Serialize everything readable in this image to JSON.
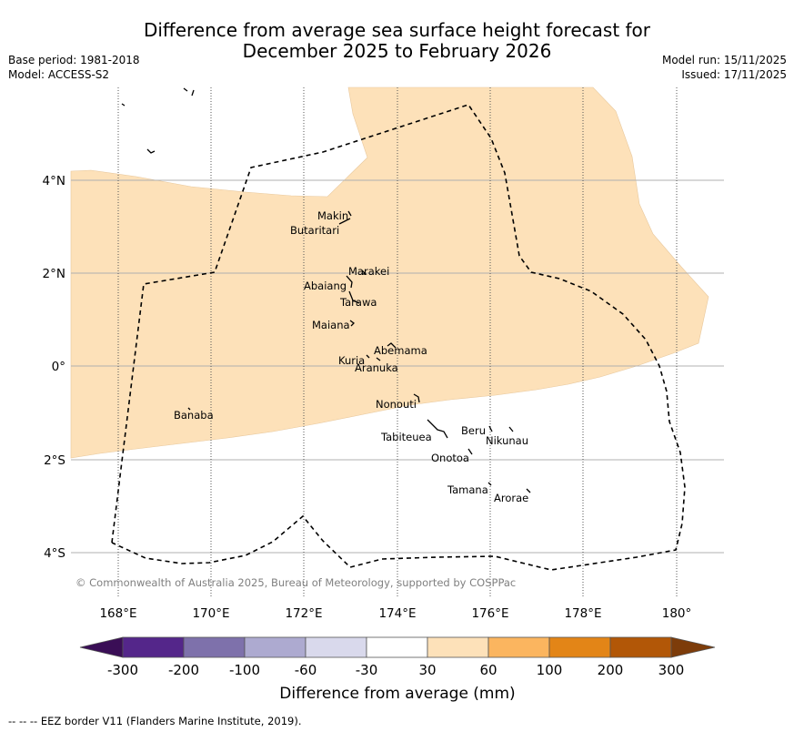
{
  "title_line1": "Difference from average sea surface height forecast for",
  "title_line2": "December 2025 to February 2026",
  "meta_left": {
    "base_period": "Base period: 1981-2018",
    "model": "Model: ACCESS-S2"
  },
  "meta_right": {
    "model_run": "Model run: 15/11/2025",
    "issued": "Issued: 17/11/2025"
  },
  "map": {
    "lat_labels": [
      "4°N",
      "2°N",
      "0°",
      "2°S",
      "4°S"
    ],
    "lon_labels": [
      "168°E",
      "170°E",
      "172°E",
      "174°E",
      "176°E",
      "178°E",
      "180°"
    ],
    "islands": [
      "Makin",
      "Butaritari",
      "Marakei",
      "Abaiang",
      "Tarawa",
      "Maiana",
      "Abemama",
      "Kuria",
      "Aranuka",
      "Nonouti",
      "Banaba",
      "Beru",
      "Nikunau",
      "Tabiteuea",
      "Onotoa",
      "Tamana",
      "Arorae"
    ],
    "copyright": "© Commonwealth of Australia 2025, Bureau of Meteorology, supported by COSPPac"
  },
  "colorbar": {
    "label": "Difference from average (mm)",
    "ticks": [
      "-300",
      "-200",
      "-100",
      "-60",
      "-30",
      "30",
      "60",
      "100",
      "200",
      "300"
    ],
    "colors": {
      "below_-300": "#3a0e56",
      "-300_-200": "#54268a",
      "-200_-100": "#7e71ab",
      "-100_-60": "#adaad0",
      "-60_-30": "#d9d9ec",
      "-30_30": "#ffffff",
      "30_60": "#fde1b9",
      "60_100": "#fbb55f",
      "100_200": "#e38517",
      "200_300": "#b25707",
      "above_300": "#7d3c0a"
    }
  },
  "footer": "--  --  -- EEZ border V11 (Flanders Marine Institute, 2019)."
}
